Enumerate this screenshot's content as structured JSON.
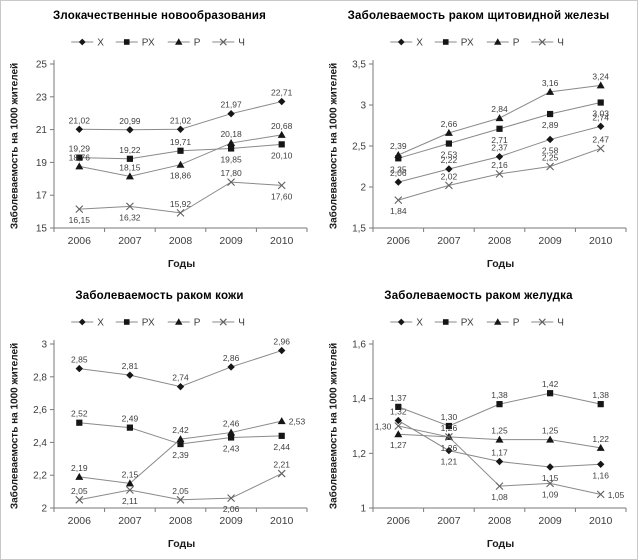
{
  "style": {
    "background": "#ffffff",
    "border_color": "#c9c9c9",
    "line_color": "#8a8a8a",
    "marker_color": "#161616",
    "x_marker_color": "#606060",
    "axis_color": "#7a7a7a",
    "tick_text_color": "#3d3d3d",
    "point_label_color": "#404040",
    "title_color": "#000000"
  },
  "chart_data": [
    {
      "type": "line",
      "title": "Злокачественные новообразования",
      "xlabel": "Годы",
      "ylabel": "Заболеваемость на 1000 жителей",
      "legend_position": "top",
      "grid": false,
      "categories": [
        "2006",
        "2007",
        "2008",
        "2009",
        "2010"
      ],
      "ylim": [
        15,
        25
      ],
      "ytick_values": [
        15,
        17,
        19,
        21,
        23,
        25
      ],
      "ytick_labels": [
        "15",
        "17",
        "19",
        "21",
        "23",
        "25"
      ],
      "series": [
        {
          "name": "Х",
          "marker": "diamond",
          "values": [
            21.02,
            20.99,
            21.02,
            21.97,
            22.71
          ],
          "point_labels": [
            "21,02",
            "20,99",
            "21,02",
            "21,97",
            "22,71"
          ],
          "label_side": [
            "a",
            "a",
            "a",
            "a",
            "a"
          ]
        },
        {
          "name": "РХ",
          "marker": "square",
          "values": [
            19.29,
            19.22,
            19.71,
            19.85,
            20.1
          ],
          "point_labels": [
            "19,29",
            "19,22",
            "19,71",
            "19,85",
            "20,10"
          ],
          "label_side": [
            "a",
            "a",
            "a",
            "b",
            "b"
          ]
        },
        {
          "name": "Р",
          "marker": "triangle",
          "values": [
            18.76,
            18.15,
            18.86,
            20.18,
            20.68
          ],
          "point_labels": [
            "18,76",
            "18,15",
            "18,86",
            "20,18",
            "20,68"
          ],
          "label_side": [
            "a",
            "a",
            "b",
            "a",
            "a"
          ]
        },
        {
          "name": "Ч",
          "marker": "x-cross",
          "values": [
            16.15,
            16.32,
            15.92,
            17.8,
            17.6
          ],
          "point_labels": [
            "16,15",
            "16,32",
            "15,92",
            "17,80",
            "17,60"
          ],
          "label_side": [
            "b",
            "b",
            "a",
            "a",
            "b"
          ]
        }
      ]
    },
    {
      "type": "line",
      "title": "Заболеваемость раком щитовидной железы",
      "xlabel": "Годы",
      "ylabel": "Заболеваемость на 1000 жителей",
      "legend_position": "top",
      "grid": false,
      "categories": [
        "2006",
        "2007",
        "2008",
        "2009",
        "2010"
      ],
      "ylim": [
        1.5,
        3.5
      ],
      "ytick_values": [
        1.5,
        2,
        2.5,
        3,
        3.5
      ],
      "ytick_labels": [
        "1,5",
        "2",
        "2,5",
        "3",
        "3,5"
      ],
      "series": [
        {
          "name": "Х",
          "marker": "diamond",
          "values": [
            2.06,
            2.22,
            2.37,
            2.58,
            2.74
          ],
          "point_labels": [
            "2,06",
            "2,22",
            "2,37",
            "2,58",
            "2,74"
          ],
          "label_side": [
            "a",
            "a",
            "a",
            "b",
            "a"
          ]
        },
        {
          "name": "РХ",
          "marker": "square",
          "values": [
            2.35,
            2.53,
            2.71,
            2.89,
            3.03
          ],
          "point_labels": [
            "2,35",
            "2,53",
            "2,71",
            "2,89",
            "3,03"
          ],
          "label_side": [
            "b",
            "b",
            "b",
            "b",
            "b"
          ]
        },
        {
          "name": "Р",
          "marker": "triangle",
          "values": [
            2.39,
            2.66,
            2.84,
            3.16,
            3.24
          ],
          "point_labels": [
            "2,39",
            "2,66",
            "2,84",
            "3,16",
            "3,24"
          ],
          "label_side": [
            "a",
            "a",
            "a",
            "a",
            "a"
          ]
        },
        {
          "name": "Ч",
          "marker": "x-cross",
          "values": [
            1.84,
            2.02,
            2.16,
            2.25,
            2.47
          ],
          "point_labels": [
            "1,84",
            "2,02",
            "2,16",
            "2,25",
            "2,47"
          ],
          "label_side": [
            "b",
            "a",
            "a",
            "a",
            "a"
          ]
        }
      ]
    },
    {
      "type": "line",
      "title": "Заболеваемость раком кожи",
      "xlabel": "Годы",
      "ylabel": "Заболеваемость на 1000 жителей",
      "legend_position": "top",
      "grid": false,
      "categories": [
        "2006",
        "2007",
        "2008",
        "2009",
        "2010"
      ],
      "ylim": [
        2,
        3
      ],
      "ytick_values": [
        2,
        2.2,
        2.4,
        2.6,
        2.8,
        3
      ],
      "ytick_labels": [
        "2",
        "2,2",
        "2,4",
        "2,6",
        "2,8",
        "3"
      ],
      "series": [
        {
          "name": "Х",
          "marker": "diamond",
          "values": [
            2.85,
            2.81,
            2.74,
            2.86,
            2.96
          ],
          "point_labels": [
            "2,85",
            "2,81",
            "2,74",
            "2,86",
            "2,96"
          ],
          "label_side": [
            "a",
            "a",
            "a",
            "a",
            "a"
          ]
        },
        {
          "name": "РХ",
          "marker": "square",
          "values": [
            2.52,
            2.49,
            2.39,
            2.43,
            2.44
          ],
          "point_labels": [
            "2,52",
            "2,49",
            "2,39",
            "2,43",
            "2,44"
          ],
          "label_side": [
            "a",
            "a",
            "b",
            "b",
            "b"
          ]
        },
        {
          "name": "Р",
          "marker": "triangle",
          "values": [
            2.19,
            2.15,
            2.42,
            2.46,
            2.53
          ],
          "point_labels": [
            "2,19",
            "2,15",
            "2,42",
            "2,46",
            "2,53"
          ],
          "label_side": [
            "a",
            "a",
            "a",
            "a",
            "r"
          ]
        },
        {
          "name": "Ч",
          "marker": "x-cross",
          "values": [
            2.05,
            2.11,
            2.05,
            2.06,
            2.21
          ],
          "point_labels": [
            "2,05",
            "2,11",
            "2,05",
            "2,06",
            "2,21"
          ],
          "label_side": [
            "a",
            "b",
            "a",
            "b",
            "a"
          ]
        }
      ]
    },
    {
      "type": "line",
      "title": "Заболеваемость раком желудка",
      "xlabel": "Годы",
      "ylabel": "Заболеваемость на 1000 жителей",
      "legend_position": "top",
      "grid": false,
      "categories": [
        "2006",
        "2007",
        "2008",
        "2009",
        "2010"
      ],
      "ylim": [
        1,
        1.6
      ],
      "ytick_values": [
        1,
        1.2,
        1.4,
        1.6
      ],
      "ytick_labels": [
        "1",
        "1,2",
        "1,4",
        "1,6"
      ],
      "series": [
        {
          "name": "Х",
          "marker": "diamond",
          "values": [
            1.32,
            1.21,
            1.17,
            1.15,
            1.16
          ],
          "point_labels": [
            "1,32",
            "1,21",
            "1,17",
            "1,15",
            "1,16"
          ],
          "label_side": [
            "a",
            "b",
            "a",
            "b",
            "b"
          ]
        },
        {
          "name": "РХ",
          "marker": "square",
          "values": [
            1.37,
            1.3,
            1.38,
            1.42,
            1.38
          ],
          "point_labels": [
            "1,37",
            "1,30",
            "1,38",
            "1,42",
            "1,38"
          ],
          "label_side": [
            "a",
            "a",
            "a",
            "a",
            "a"
          ]
        },
        {
          "name": "Р",
          "marker": "triangle",
          "values": [
            1.27,
            1.26,
            1.25,
            1.25,
            1.22
          ],
          "point_labels": [
            "1,27",
            "1,26",
            "1,25",
            "1,25",
            "1,22"
          ],
          "label_side": [
            "b",
            "a",
            "a",
            "a",
            "a"
          ]
        },
        {
          "name": "Ч",
          "marker": "x-cross",
          "values": [
            1.3,
            1.26,
            1.08,
            1.09,
            1.05
          ],
          "point_labels": [
            "1,30",
            "1,26",
            "1,08",
            "1,09",
            "1,05"
          ],
          "label_side": [
            "l",
            "b",
            "b",
            "b",
            "r"
          ]
        }
      ]
    }
  ]
}
